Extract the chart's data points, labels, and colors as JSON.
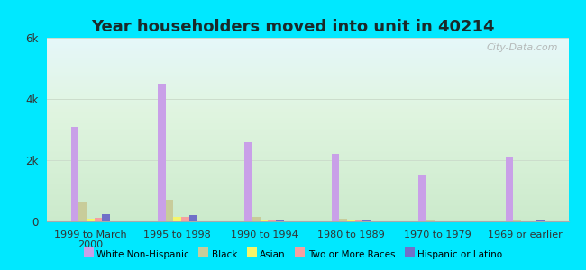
{
  "title": "Year householders moved into unit in 40214",
  "categories": [
    "1999 to March\n2000",
    "1995 to 1998",
    "1990 to 1994",
    "1980 to 1989",
    "1970 to 1979",
    "1969 or earlier"
  ],
  "series": {
    "White Non-Hispanic": [
      3100,
      4500,
      2600,
      2200,
      1500,
      2100
    ],
    "Black": [
      650,
      700,
      150,
      80,
      30,
      20
    ],
    "Asian": [
      80,
      150,
      60,
      30,
      10,
      10
    ],
    "Two or More Races": [
      130,
      160,
      20,
      20,
      10,
      10
    ],
    "Hispanic or Latino": [
      230,
      210,
      20,
      20,
      10,
      15
    ]
  },
  "colors": {
    "White Non-Hispanic": "#c9a0e8",
    "Black": "#c8cc9a",
    "Asian": "#f5f56a",
    "Two or More Races": "#f5a0a0",
    "Hispanic or Latino": "#7070c8"
  },
  "ylim": [
    0,
    6000
  ],
  "yticks": [
    0,
    2000,
    4000,
    6000
  ],
  "ytick_labels": [
    "0",
    "2k",
    "4k",
    "6k"
  ],
  "background_outer": "#00e8ff",
  "title_fontsize": 13,
  "title_color": "#1a2a2a",
  "bar_width": 0.09,
  "watermark": "City-Data.com"
}
